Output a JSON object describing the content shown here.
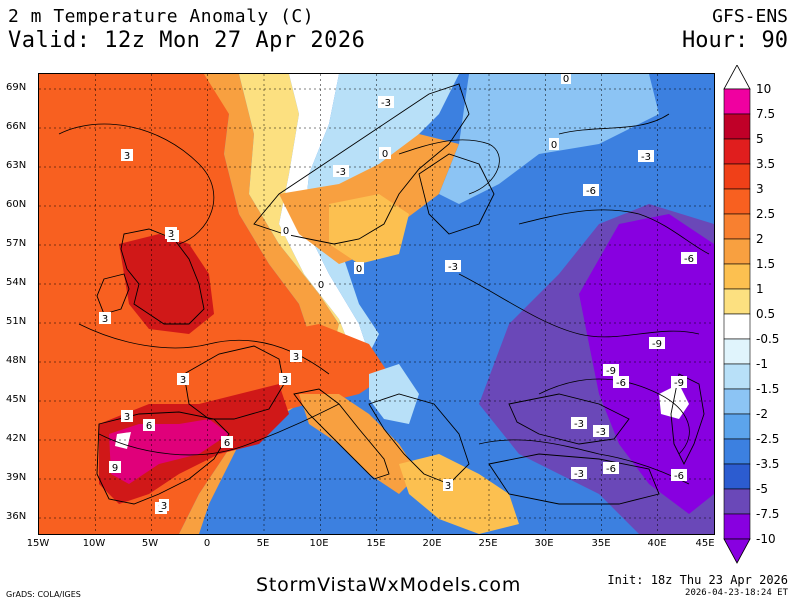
{
  "header": {
    "title_line1": "2 m Temperature Anomaly (C)",
    "title_line2": "Valid: 12z Mon 27 Apr 2026",
    "model": "GFS-ENS",
    "hour": "Hour: 90"
  },
  "axes": {
    "lat_labels": [
      "69N",
      "66N",
      "63N",
      "60N",
      "57N",
      "54N",
      "51N",
      "48N",
      "45N",
      "42N",
      "39N",
      "36N"
    ],
    "lon_labels": [
      "15W",
      "10W",
      "5W",
      "0",
      "5E",
      "10E",
      "15E",
      "20E",
      "25E",
      "30E",
      "35E",
      "40E",
      "45E"
    ]
  },
  "colorbar": {
    "labels": [
      "10",
      "7.5",
      "5",
      "3.5",
      "3",
      "2.5",
      "2",
      "1.5",
      "1",
      "0.5",
      "-0.5",
      "-1",
      "-1.5",
      "-2",
      "-2.5",
      "-3.5",
      "-5",
      "-7.5",
      "-10"
    ],
    "colors": [
      "#f000a0",
      "#c00028",
      "#e01e1e",
      "#f04018",
      "#f86020",
      "#f88030",
      "#f8a040",
      "#fcc050",
      "#fce080",
      "#ffffff",
      "#e0f4fc",
      "#b8e0f8",
      "#8cc4f4",
      "#5ca4ec",
      "#3c80e0",
      "#2c5cd0",
      "#6a48b8",
      "#8800e0"
    ]
  },
  "map": {
    "colors": {
      "warm_deep": "#f04018",
      "warm": "#f86020",
      "orange": "#f8a040",
      "yellow": "#fcc050",
      "pale": "#fce080",
      "white": "#ffffff",
      "ice": "#b8e0f8",
      "blue_light": "#8cc4f4",
      "blue": "#3c80e0",
      "blue_mid": "#2c5cd0",
      "purple": "#6a48b8",
      "violet": "#8800e0",
      "red": "#d01818",
      "magenta": "#e0007a"
    },
    "contour_labels": [
      "3",
      "3",
      "3",
      "3",
      "3",
      "3",
      "3",
      "3",
      "6",
      "6",
      "9",
      "3",
      "-3",
      "-3",
      "-3",
      "0",
      "-6",
      "-3",
      "-6",
      "-9",
      "-9",
      "-6",
      "-9",
      "-3",
      "-3",
      "-3",
      "-6",
      "-6",
      "0",
      "0",
      "0",
      "0",
      "0",
      "3",
      "3"
    ]
  },
  "footer": {
    "grads": "GrADS: COLA/IGES",
    "site": "StormVistaWxModels.com",
    "init": "Init: 18z Thu 23 Apr 2026",
    "generated": "2026-04-23-18:24 ET"
  }
}
